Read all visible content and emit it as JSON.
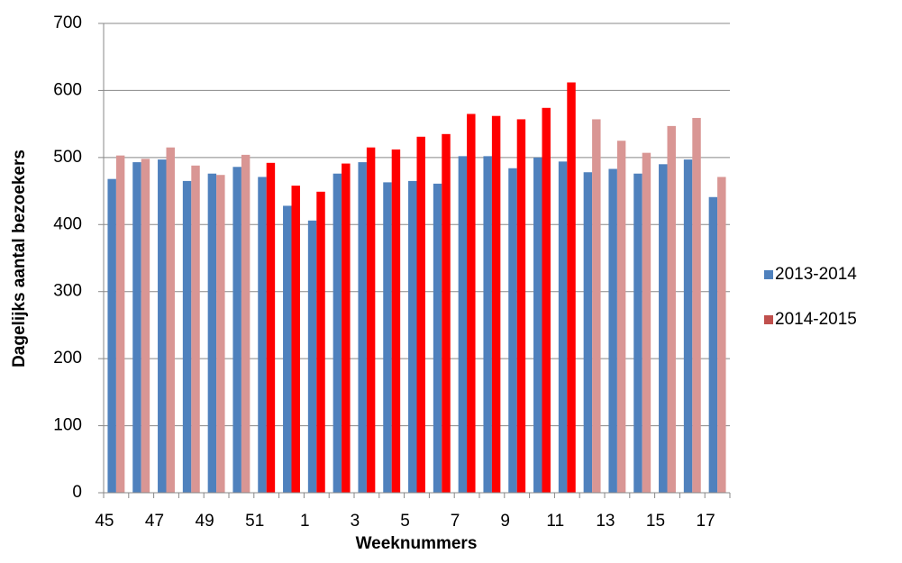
{
  "chart_data": {
    "type": "bar",
    "x_label": "Weeknummers",
    "y_label": "Dagelijks aantal bezoekers",
    "categories": [
      "45",
      null,
      "47",
      null,
      "49",
      null,
      "51",
      null,
      "1",
      null,
      "3",
      null,
      "5",
      null,
      "7",
      null,
      "9",
      null,
      "11",
      null,
      "13",
      null,
      "15",
      null,
      "17"
    ],
    "series": [
      {
        "name": "2013-2014",
        "color": "#4f81bd",
        "values": [
          468,
          493,
          497,
          465,
          476,
          486,
          471,
          428,
          406,
          476,
          493,
          463,
          465,
          461,
          502,
          502,
          484,
          500,
          494,
          478,
          483,
          476,
          490,
          497,
          441
        ]
      },
      {
        "name": "2014-2015",
        "color": "#c0504d",
        "colors": [
          "#d99694",
          "#d99694",
          "#d99694",
          "#d99694",
          "#d99694",
          "#d99694",
          "#ff0000",
          "#ff0000",
          "#ff0000",
          "#ff0000",
          "#ff0000",
          "#ff0000",
          "#ff0000",
          "#ff0000",
          "#ff0000",
          "#ff0000",
          "#ff0000",
          "#ff0000",
          "#ff0000",
          "#d99694",
          "#d99694",
          "#d99694",
          "#d99694",
          "#d99694",
          "#d99694"
        ],
        "values": [
          503,
          498,
          515,
          488,
          474,
          504,
          492,
          458,
          449,
          491,
          515,
          512,
          531,
          535,
          565,
          562,
          557,
          574,
          612,
          557,
          525,
          507,
          547,
          559,
          471
        ]
      }
    ],
    "ylim": [
      0,
      700
    ],
    "yticks": [
      0,
      100,
      200,
      300,
      400,
      500,
      600,
      700
    ],
    "grid": true,
    "legend": "right"
  }
}
